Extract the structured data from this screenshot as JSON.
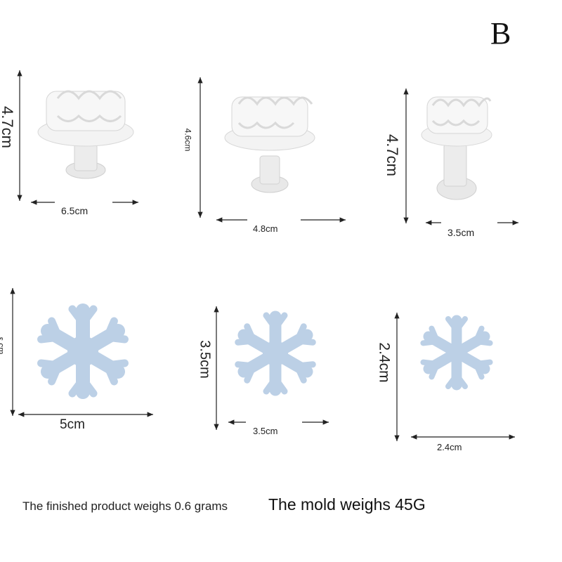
{
  "corner_letter": "B",
  "stampers": [
    {
      "height_label": "4.7cm",
      "width_label": "6.5cm"
    },
    {
      "height_label": "4.6cm",
      "width_label": "4.8cm"
    },
    {
      "height_label": "4.7cm",
      "width_label": "3.5cm"
    }
  ],
  "snowflakes": [
    {
      "height_label": "ε cm",
      "width_label": "5cm"
    },
    {
      "height_label": "3.5cm",
      "width_label": "3.5cm"
    },
    {
      "height_label": "2.4cm",
      "width_label": "2.4cm"
    }
  ],
  "footer": {
    "product_weight": "The finished product weighs 0.6 grams",
    "mold_weight": "The mold weighs 45G"
  },
  "colors": {
    "snowflake": "#bcd0e6",
    "mold": "#f4f4f4",
    "mold_shadow": "#dcdcdc"
  }
}
